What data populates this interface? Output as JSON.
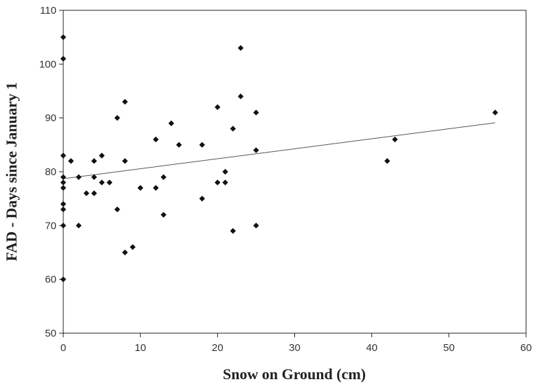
{
  "chart_data": {
    "type": "scatter",
    "title": "",
    "xlabel": "Snow on Ground (cm)",
    "ylabel": "FAD - Days since January 1",
    "xlim": [
      0,
      60
    ],
    "ylim": [
      50,
      110
    ],
    "xticks": [
      0,
      10,
      20,
      30,
      40,
      50,
      60
    ],
    "yticks": [
      50,
      60,
      70,
      80,
      90,
      100,
      110
    ],
    "grid": false,
    "legend": "none",
    "colors": {
      "marker": "#111111",
      "trendline": "#555555",
      "axis": "#222222"
    },
    "points": [
      {
        "x": 0,
        "y": 105
      },
      {
        "x": 0,
        "y": 101
      },
      {
        "x": 0,
        "y": 83
      },
      {
        "x": 0,
        "y": 79
      },
      {
        "x": 0,
        "y": 78
      },
      {
        "x": 0,
        "y": 77
      },
      {
        "x": 0,
        "y": 74
      },
      {
        "x": 0,
        "y": 73
      },
      {
        "x": 0,
        "y": 70
      },
      {
        "x": 0,
        "y": 60
      },
      {
        "x": 1,
        "y": 82
      },
      {
        "x": 2,
        "y": 79
      },
      {
        "x": 2,
        "y": 70
      },
      {
        "x": 3,
        "y": 76
      },
      {
        "x": 4,
        "y": 82
      },
      {
        "x": 4,
        "y": 79
      },
      {
        "x": 4,
        "y": 76
      },
      {
        "x": 5,
        "y": 83
      },
      {
        "x": 5,
        "y": 78
      },
      {
        "x": 6,
        "y": 78
      },
      {
        "x": 7,
        "y": 90
      },
      {
        "x": 7,
        "y": 73
      },
      {
        "x": 8,
        "y": 93
      },
      {
        "x": 8,
        "y": 82
      },
      {
        "x": 8,
        "y": 65
      },
      {
        "x": 9,
        "y": 66
      },
      {
        "x": 10,
        "y": 77
      },
      {
        "x": 12,
        "y": 86
      },
      {
        "x": 12,
        "y": 77
      },
      {
        "x": 13,
        "y": 79
      },
      {
        "x": 13,
        "y": 72
      },
      {
        "x": 14,
        "y": 89
      },
      {
        "x": 15,
        "y": 85
      },
      {
        "x": 18,
        "y": 85
      },
      {
        "x": 18,
        "y": 75
      },
      {
        "x": 20,
        "y": 92
      },
      {
        "x": 20,
        "y": 78
      },
      {
        "x": 21,
        "y": 80
      },
      {
        "x": 21,
        "y": 78
      },
      {
        "x": 22,
        "y": 88
      },
      {
        "x": 22,
        "y": 69
      },
      {
        "x": 23,
        "y": 103
      },
      {
        "x": 23,
        "y": 94
      },
      {
        "x": 25,
        "y": 91
      },
      {
        "x": 25,
        "y": 84
      },
      {
        "x": 25,
        "y": 70
      },
      {
        "x": 42,
        "y": 82
      },
      {
        "x": 43,
        "y": 86
      },
      {
        "x": 56,
        "y": 91
      }
    ],
    "trendline": {
      "type": "linear",
      "x": [
        0,
        56
      ],
      "y": [
        78.7,
        89.1
      ]
    }
  }
}
